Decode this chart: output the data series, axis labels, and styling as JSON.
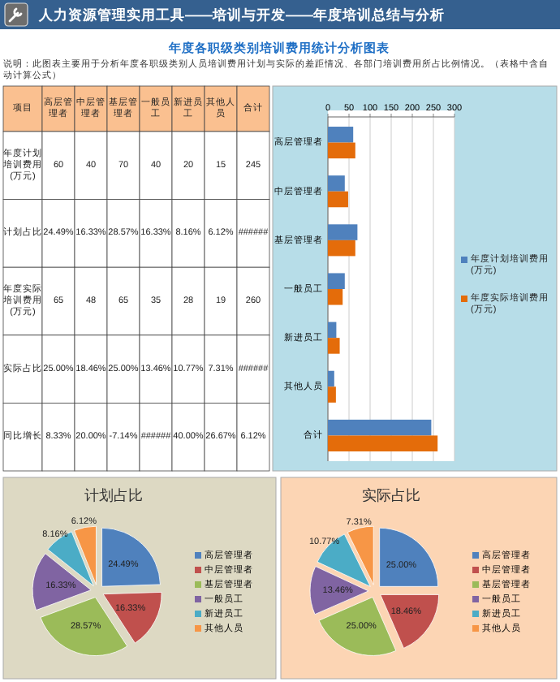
{
  "chart_data": [
    {
      "type": "other",
      "title": "人力资源管理实用工具——培训与开发——年度培训总结与分析",
      "subtitle": "年度各职级类别培训费用统计分析图表",
      "annotations": [
        "说明：此图表主要用于分析年度各职级类别人员培训费用计划与实际的差距情况、各部门培训费用所占比例情况。（表格中含自动计算公式）",
        "项目",
        "高层管理者",
        "中层管理者",
        "基层管理者",
        "一般员工",
        "新进员工",
        "其他人员",
        "合计",
        "年度计划培训费用(万元)",
        "60",
        "40",
        "70",
        "40",
        "20",
        "15",
        "245",
        "计划占比",
        "24.49%",
        "16.33%",
        "28.57%",
        "16.33%",
        "8.16%",
        "6.12%",
        "######",
        "年度实际培训费用(万元)",
        "65",
        "48",
        "65",
        "35",
        "28",
        "19",
        "260",
        "实际占比",
        "25.00%",
        "18.46%",
        "25.00%",
        "13.46%",
        "10.77%",
        "7.31%",
        "######",
        "同比增长",
        "8.33%",
        "20.00%",
        "-7.14%",
        "######",
        "40.00%",
        "26.67%",
        "6.12%"
      ]
    },
    {
      "type": "bar",
      "orientation": "horizontal",
      "categories": [
        "高层管理者",
        "中层管理者",
        "基层管理者",
        "一般员工",
        "新进员工",
        "其他人员",
        "合计"
      ],
      "series": [
        {
          "name": "年度计划培训费用(万元)",
          "color": "#4f81bd",
          "values": [
            60,
            40,
            70,
            40,
            20,
            15,
            245
          ]
        },
        {
          "name": "年度实际培训费用(万元)",
          "color": "#e46c0a",
          "values": [
            65,
            48,
            65,
            35,
            28,
            19,
            260
          ]
        }
      ],
      "xlim": [
        0,
        300
      ],
      "xticks": [
        0,
        50,
        100,
        150,
        200,
        250,
        300
      ],
      "grid": "x",
      "legend": "right"
    },
    {
      "type": "pie",
      "title": "计划占比",
      "categories": [
        "高层管理者",
        "中层管理者",
        "基层管理者",
        "一般员工",
        "新进员工",
        "其他人员"
      ],
      "values": [
        24.49,
        16.33,
        28.57,
        16.33,
        8.16,
        6.12
      ],
      "value_labels": [
        "24.49%",
        "16.33%",
        "28.57%",
        "16.33%",
        "8.16%",
        "6.12%"
      ],
      "colors": [
        "#4f81bd",
        "#c0504d",
        "#9bbb59",
        "#8064a2",
        "#4bacc6",
        "#f79646"
      ],
      "legend": "right"
    },
    {
      "type": "pie",
      "title": "实际占比",
      "categories": [
        "高层管理者",
        "中层管理者",
        "基层管理者",
        "一般员工",
        "新进员工",
        "其他人员"
      ],
      "values": [
        25.0,
        18.46,
        25.0,
        13.46,
        10.77,
        7.31
      ],
      "value_labels": [
        "25.00%",
        "18.46%",
        "25.00%",
        "13.46%",
        "10.77%",
        "7.31%"
      ],
      "colors": [
        "#4f81bd",
        "#c0504d",
        "#9bbb59",
        "#8064a2",
        "#4bacc6",
        "#f79646"
      ],
      "legend": "right"
    }
  ]
}
